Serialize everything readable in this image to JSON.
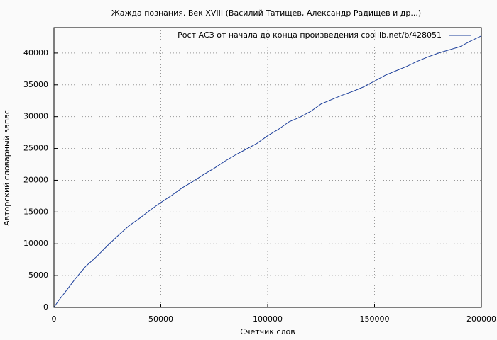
{
  "chart_data": {
    "type": "line",
    "title": "Жажда познания. Век XVIII (Василий Татищев, Александр Радищев и др...)",
    "x_label": "Счетчик слов",
    "y_label": "Авторский словарный запас",
    "x": [
      0,
      2000,
      5000,
      10000,
      15000,
      20000,
      25000,
      30000,
      35000,
      40000,
      45000,
      50000,
      55000,
      60000,
      65000,
      70000,
      75000,
      80000,
      85000,
      90000,
      95000,
      100000,
      105000,
      110000,
      115000,
      120000,
      125000,
      130000,
      135000,
      140000,
      145000,
      150000,
      155000,
      160000,
      165000,
      170000,
      175000,
      180000,
      185000,
      190000,
      195000,
      200000
    ],
    "series": [
      {
        "name": "Рост АСЗ от начала до конца произведения coollib.net/b/428051",
        "color": "#1a3d9a",
        "values": [
          0,
          1000,
          2300,
          4500,
          6500,
          8000,
          9700,
          11300,
          12800,
          14000,
          15300,
          16500,
          17600,
          18800,
          19800,
          20900,
          21900,
          23000,
          24000,
          24900,
          25800,
          27000,
          28000,
          29200,
          29900,
          30800,
          32000,
          32700,
          33400,
          34000,
          34700,
          35600,
          36500,
          37200,
          37900,
          38700,
          39400,
          40000,
          40500,
          41000,
          41900,
          42700
        ]
      }
    ],
    "xlim": [
      0,
      200000
    ],
    "xticks": [
      0,
      50000,
      100000,
      150000,
      200000
    ],
    "ylim": [
      0,
      44000
    ],
    "yticks": [
      0,
      5000,
      10000,
      15000,
      20000,
      25000,
      30000,
      35000,
      40000
    ],
    "grid": true,
    "legend": "top-right"
  }
}
